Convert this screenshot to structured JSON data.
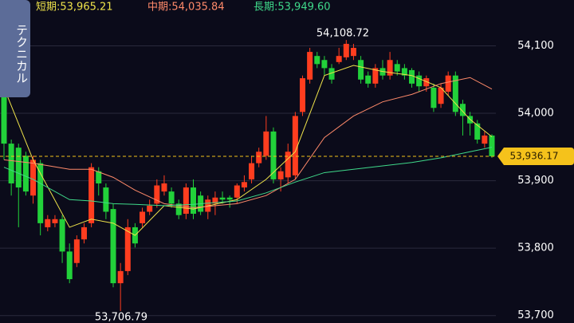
{
  "chart_data": {
    "type": "candlestick",
    "side_tab": "テクニカル",
    "up_color": "#ff3d1f",
    "down_color": "#22d13a",
    "open": [
      54062,
      53955,
      53949,
      53937,
      53878,
      53926,
      53831,
      53837,
      53843,
      53795,
      53778,
      53813,
      53837,
      53914,
      53890,
      53858,
      53748,
      53766,
      53831,
      53837,
      53854,
      53866,
      53884,
      53884,
      53866,
      53851,
      53890,
      53878,
      53854,
      53866,
      53875,
      53875,
      53875,
      53890,
      53902,
      53926,
      53937,
      53973,
      53902,
      53905,
      53908,
      54002,
      54050,
      54085,
      54079,
      54067,
      54076,
      54083,
      54085,
      54079,
      54056,
      54044,
      54067,
      54056,
      54073,
      54067,
      54064,
      54056,
      54040,
      54038,
      54014,
      54032,
      54056,
      54014,
      53996,
      53985,
      53955,
      53967
    ],
    "high": [
      54073,
      53961,
      53955,
      53943,
      53937,
      53931,
      53849,
      53849,
      53849,
      53807,
      53819,
      53837,
      53926,
      53920,
      53896,
      53866,
      53778,
      53843,
      53837,
      53860,
      53872,
      53902,
      53908,
      53890,
      53872,
      53896,
      53902,
      53884,
      53878,
      53884,
      53884,
      53878,
      53896,
      53908,
      53937,
      53949,
      53996,
      53979,
      53920,
      53955,
      54002,
      54056,
      54097,
      54091,
      54085,
      54073,
      54097,
      54108.72,
      54103,
      54085,
      54062,
      54073,
      54079,
      54091,
      54079,
      54073,
      54067,
      54062,
      54056,
      54044,
      54044,
      54062,
      54062,
      54020,
      54002,
      53990,
      53973,
      53969
    ],
    "low": [
      53931,
      53878,
      53831,
      53878,
      53866,
      53819,
      53825,
      53831,
      53778,
      53748,
      53772,
      53807,
      53831,
      53878,
      53843,
      53742,
      53706.79,
      53760,
      53801,
      53831,
      53849,
      53860,
      53878,
      53860,
      53843,
      53843,
      53843,
      53849,
      53843,
      53849,
      53866,
      53860,
      53866,
      53884,
      53896,
      53920,
      53931,
      53896,
      53884,
      53896,
      53902,
      53996,
      54044,
      54067,
      54056,
      54044,
      54073,
      54079,
      54079,
      54044,
      54038,
      54038,
      54050,
      54050,
      54056,
      54050,
      54038,
      54032,
      54032,
      54002,
      54008,
      54026,
      53996,
      53967,
      53967,
      53955,
      53949,
      53934
    ],
    "close": [
      53955,
      53896,
      53890,
      53884,
      53931,
      53837,
      53843,
      53843,
      53795,
      53754,
      53813,
      53831,
      53920,
      53896,
      53854,
      53748,
      53766,
      53831,
      53807,
      53854,
      53863,
      53893,
      53896,
      53866,
      53849,
      53890,
      53851,
      53854,
      53872,
      53875,
      53872,
      53872,
      53893,
      53898,
      53926,
      53943,
      53973,
      53902,
      53914,
      53943,
      53996,
      54052,
      54091,
      54073,
      54067,
      54050,
      54085,
      54103,
      54097,
      54050,
      54044,
      54067,
      54056,
      54079,
      54062,
      54056,
      54044,
      54040,
      54052,
      54008,
      54038,
      54056,
      54002,
      53996,
      53985,
      53961,
      53967,
      53936.17
    ],
    "series": [
      {
        "name": "短期:53,965.21",
        "color": "#eee24a",
        "x": [
          0,
          4,
          9,
          12,
          15,
          18,
          22,
          26,
          32,
          36,
          40,
          44,
          48,
          52,
          56,
          60,
          64,
          67
        ],
        "values": [
          54038,
          53931,
          53831,
          53843,
          53837,
          53819,
          53863,
          53858,
          53872,
          53902,
          53943,
          54056,
          54071,
          54062,
          54056,
          54038,
          53991,
          53965.21
        ]
      },
      {
        "name": "中期:54,035.84",
        "color": "#ff8a6a",
        "x": [
          0,
          4,
          9,
          12,
          15,
          18,
          22,
          26,
          32,
          36,
          40,
          44,
          48,
          52,
          56,
          60,
          64,
          67
        ],
        "values": [
          53931,
          53926,
          53917,
          53917,
          53905,
          53886,
          53866,
          53860,
          53866,
          53878,
          53902,
          53964,
          53996,
          54017,
          54028,
          54044,
          54053,
          54035.84
        ]
      },
      {
        "name": "長期:53,949.60",
        "color": "#3fd98a",
        "x": [
          0,
          4,
          9,
          12,
          15,
          18,
          22,
          26,
          32,
          36,
          40,
          44,
          48,
          52,
          56,
          60,
          64,
          67
        ],
        "values": [
          53920,
          53902,
          53872,
          53870,
          53866,
          53865,
          53863,
          53865,
          53870,
          53882,
          53898,
          53912,
          53917,
          53922,
          53927,
          53934,
          53943,
          53949.6
        ]
      }
    ],
    "current": {
      "value": 53936.17,
      "label": "53,936.17"
    },
    "annotations": [
      {
        "value": 54108.72,
        "label": "54,108.72"
      },
      {
        "value": 53706.79,
        "label": "53,706.79"
      }
    ],
    "ylim": [
      53689,
      54168
    ],
    "yticks": [
      {
        "value": 53700,
        "label": "53,700"
      },
      {
        "value": 53800,
        "label": "53,800"
      },
      {
        "value": 53900,
        "label": "53,900"
      },
      {
        "value": 54000,
        "label": "54,000"
      },
      {
        "value": 54100,
        "label": "54,100"
      }
    ],
    "grid": true
  }
}
